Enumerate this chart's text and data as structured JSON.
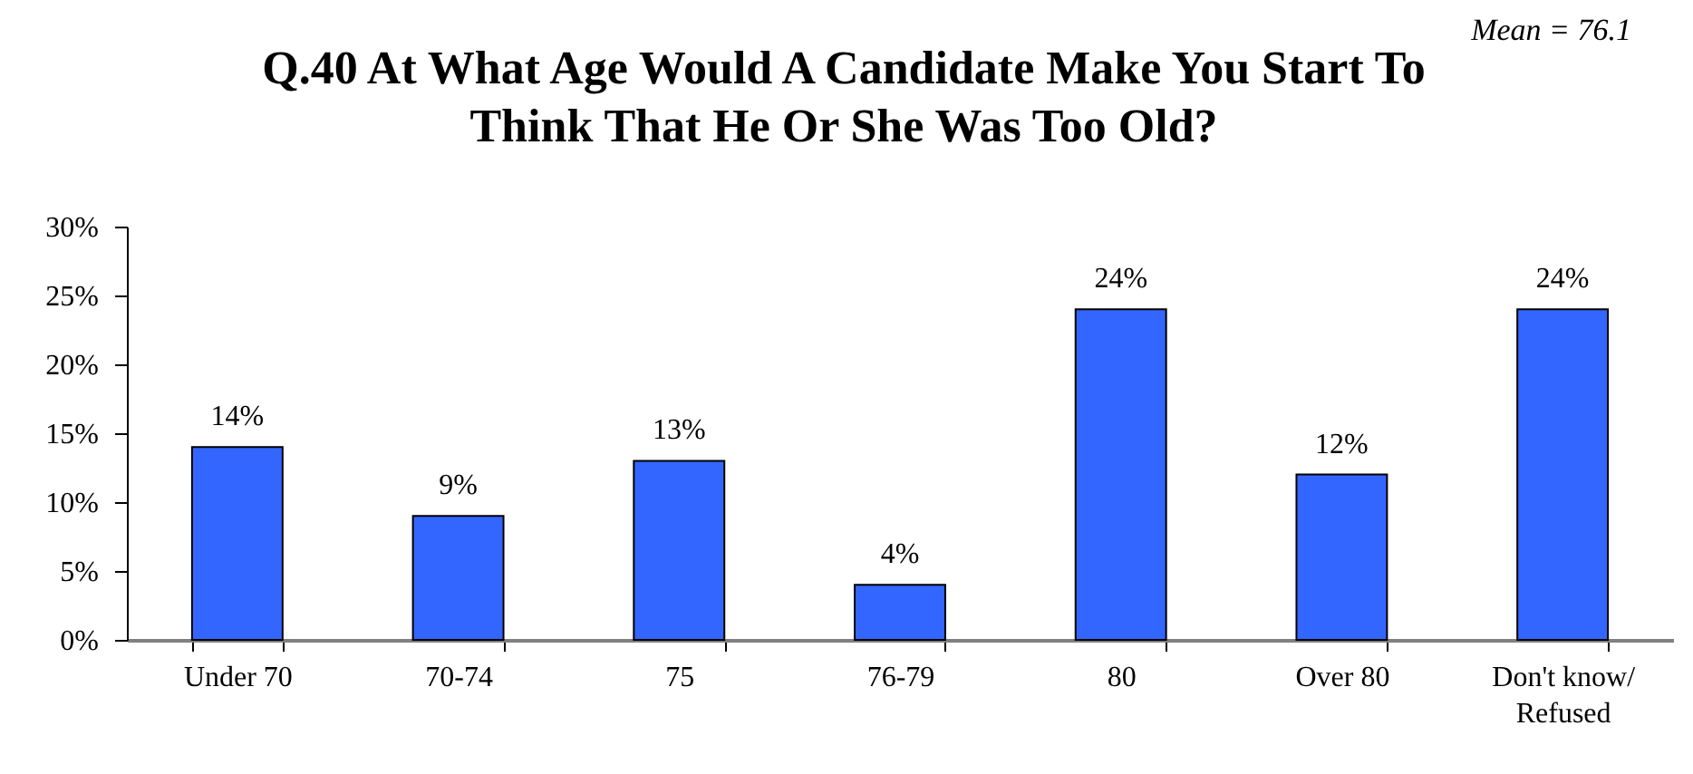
{
  "chart_data": {
    "type": "bar",
    "title": "Q.40 At What Age Would A Candidate Make You Start To Think That He Or She Was Too Old?",
    "annotations": [
      "Mean = 76.1"
    ],
    "categories": [
      "Under 70",
      "70-74",
      "75",
      "76-79",
      "80",
      "Over 80",
      "Don't know/ Refused"
    ],
    "values": [
      14,
      9,
      13,
      4,
      24,
      12,
      24
    ],
    "value_labels": [
      "14%",
      "9%",
      "13%",
      "4%",
      "24%",
      "12%",
      "24%"
    ],
    "color": "#3366ff",
    "ylim": [
      0,
      30
    ],
    "yticks": [
      {
        "value": 0,
        "label": "0%"
      },
      {
        "value": 5,
        "label": "5%"
      },
      {
        "value": 10,
        "label": "10%"
      },
      {
        "value": 15,
        "label": "15%"
      },
      {
        "value": 20,
        "label": "20%"
      },
      {
        "value": 25,
        "label": "25%"
      },
      {
        "value": 30,
        "label": "30%"
      }
    ],
    "grid": false
  }
}
